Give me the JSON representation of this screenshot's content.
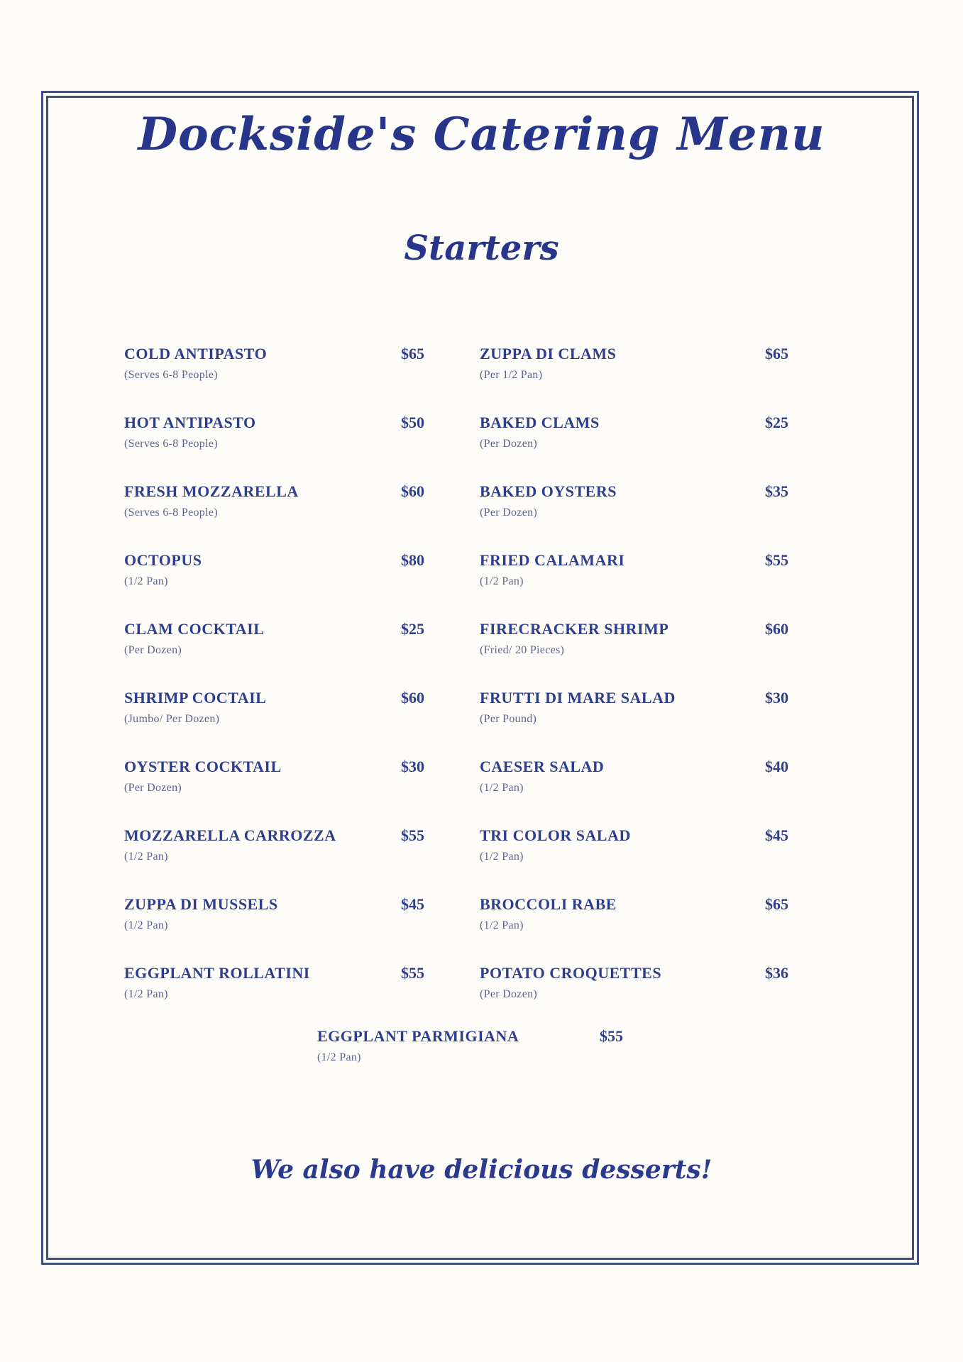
{
  "title": "Dockside's Catering Menu",
  "section_heading": "Starters",
  "footer_note": "We also have delicious desserts!",
  "colors": {
    "accent_navy": "#2e3e8c",
    "muted_label": "#5d648e",
    "border_navy": "#44507c",
    "background": "#fdfcf9"
  },
  "menu": {
    "left_column": [
      {
        "name": "COLD ANTIPASTO",
        "price": "$65",
        "unit": "(Serves 6-8 People)"
      },
      {
        "name": "HOT ANTIPASTO",
        "price": "$50",
        "unit": "(Serves 6-8 People)"
      },
      {
        "name": "FRESH MOZZARELLA",
        "price": "$60",
        "unit": "(Serves 6-8 People)"
      },
      {
        "name": "OCTOPUS",
        "price": "$80",
        "unit": "(1/2 Pan)"
      },
      {
        "name": "CLAM COCKTAIL",
        "price": "$25",
        "unit": "(Per Dozen)"
      },
      {
        "name": "SHRIMP COCTAIL",
        "price": "$60",
        "unit": "(Jumbo/ Per Dozen)"
      },
      {
        "name": "OYSTER COCKTAIL",
        "price": "$30",
        "unit": "(Per Dozen)"
      },
      {
        "name": "MOZZARELLA CARROZZA",
        "price": "$55",
        "unit": "(1/2 Pan)"
      },
      {
        "name": "ZUPPA DI MUSSELS",
        "price": "$45",
        "unit": "(1/2 Pan)"
      },
      {
        "name": "EGGPLANT ROLLATINI",
        "price": "$55",
        "unit": "(1/2 Pan)"
      }
    ],
    "right_column": [
      {
        "name": "ZUPPA DI CLAMS",
        "price": "$65",
        "unit": "(Per 1/2 Pan)"
      },
      {
        "name": "BAKED CLAMS",
        "price": "$25",
        "unit": "(Per Dozen)"
      },
      {
        "name": "BAKED OYSTERS",
        "price": "$35",
        "unit": "(Per Dozen)"
      },
      {
        "name": "FRIED CALAMARI",
        "price": "$55",
        "unit": "(1/2 Pan)"
      },
      {
        "name": "FIRECRACKER SHRIMP",
        "price": "$60",
        "unit": "(Fried/ 20 Pieces)"
      },
      {
        "name": "FRUTTI DI MARE SALAD",
        "price": "$30",
        "unit": "(Per Pound)"
      },
      {
        "name": "CAESER SALAD",
        "price": "$40",
        "unit": "(1/2 Pan)"
      },
      {
        "name": "TRI COLOR SALAD",
        "price": "$45",
        "unit": "(1/2 Pan)"
      },
      {
        "name": "BROCCOLI RABE",
        "price": "$65",
        "unit": "(1/2 Pan)"
      },
      {
        "name": "POTATO CROQUETTES",
        "price": "$36",
        "unit": "(Per Dozen)"
      }
    ],
    "centered_item": {
      "name": "EGGPLANT PARMIGIANA",
      "price": "$55",
      "unit": "(1/2 Pan)"
    }
  }
}
